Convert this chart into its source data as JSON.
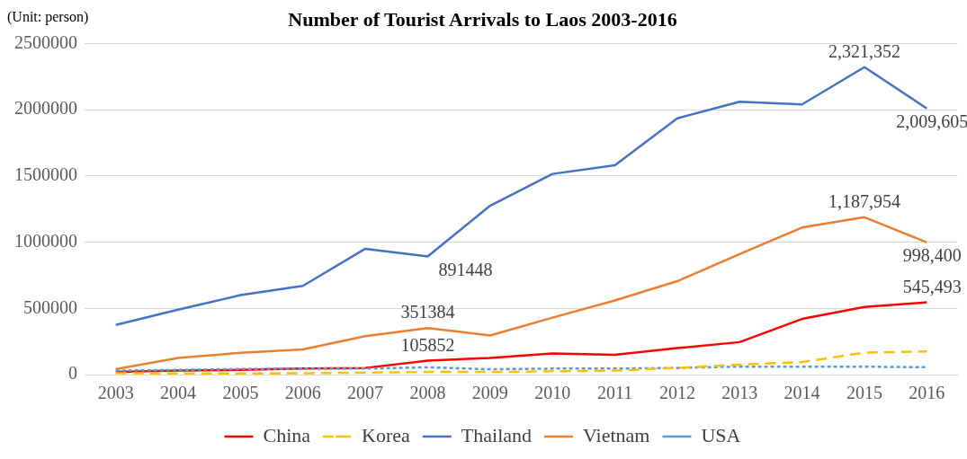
{
  "chart_data": {
    "type": "line",
    "title": "Number of Tourist Arrivals to Laos 2003-2016",
    "ylabel": "(Unit: person)",
    "categories": [
      "2003",
      "2004",
      "2005",
      "2006",
      "2007",
      "2008",
      "2009",
      "2010",
      "2011",
      "2012",
      "2013",
      "2014",
      "2015",
      "2016"
    ],
    "ylim": [
      0,
      2500000
    ],
    "yticks": [
      0,
      500000,
      1000000,
      1500000,
      2000000,
      2500000
    ],
    "grid": "y",
    "legend": "bottom",
    "marker": "none",
    "series": [
      {
        "name": "China",
        "color": "#ff0000",
        "line_style": "solid",
        "values": [
          20000,
          30000,
          35000,
          45000,
          50000,
          105852,
          125000,
          160000,
          150000,
          200000,
          245000,
          420000,
          510000,
          545493
        ],
        "value_labels": [
          null,
          null,
          null,
          null,
          null,
          "105852",
          null,
          null,
          null,
          null,
          null,
          null,
          null,
          "545,493"
        ]
      },
      {
        "name": "Korea",
        "color": "#ffc000",
        "line_style": "dashed",
        "values": [
          10000,
          8000,
          8000,
          10000,
          15000,
          20000,
          20000,
          25000,
          30000,
          50000,
          75000,
          95000,
          165000,
          175000
        ]
      },
      {
        "name": "Thailand",
        "color": "#4472c4",
        "line_style": "solid",
        "values": [
          375000,
          490000,
          600000,
          670000,
          950000,
          891448,
          1275000,
          1515000,
          1580000,
          1935000,
          2060000,
          2040000,
          2321352,
          2009605
        ],
        "value_labels": [
          null,
          null,
          null,
          null,
          null,
          "891448",
          null,
          null,
          null,
          null,
          null,
          null,
          "2,321,352",
          "2,009,605"
        ]
      },
      {
        "name": "Vietnam",
        "color": "#ed7d31",
        "line_style": "solid",
        "values": [
          40000,
          125000,
          165000,
          190000,
          290000,
          351384,
          295000,
          430000,
          560000,
          705000,
          910000,
          1110000,
          1187954,
          998400
        ],
        "value_labels": [
          null,
          null,
          null,
          null,
          null,
          "351384",
          null,
          null,
          null,
          null,
          null,
          null,
          "1,187,954",
          "998,400"
        ]
      },
      {
        "name": "USA",
        "color": "#5b9bd5",
        "line_style": "dotted",
        "values": [
          30000,
          35000,
          42000,
          45000,
          45000,
          55000,
          40000,
          45000,
          45000,
          50000,
          60000,
          60000,
          60000,
          55000
        ]
      }
    ]
  }
}
